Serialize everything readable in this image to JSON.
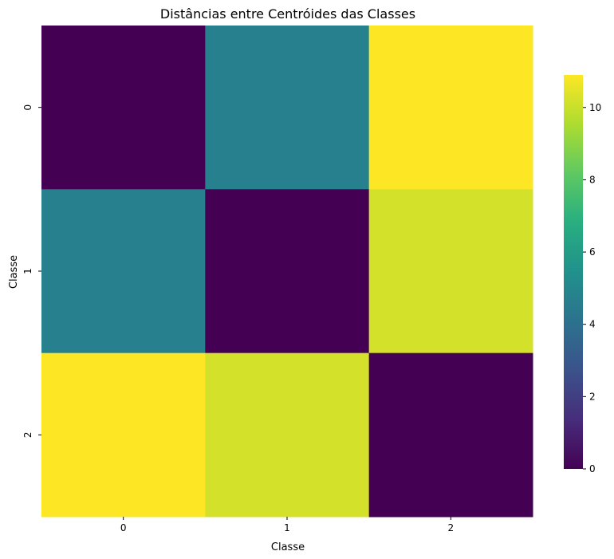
{
  "chart_data": {
    "type": "heatmap",
    "title": "Distâncias entre Centróides das Classes",
    "xlabel": "Classe",
    "ylabel": "Classe",
    "x_categories": [
      "0",
      "1",
      "2"
    ],
    "y_categories": [
      "0",
      "1",
      "2"
    ],
    "values": [
      [
        0,
        4.7,
        10.9
      ],
      [
        4.7,
        0,
        10.2
      ],
      [
        10.9,
        10.2,
        0
      ]
    ],
    "colormap": "viridis",
    "colorbar": {
      "min": 0,
      "max": 10.9,
      "ticks": [
        0,
        2,
        4,
        6,
        8,
        10
      ],
      "tick_labels": [
        "0",
        "2",
        "4",
        "6",
        "8",
        "10"
      ]
    },
    "annotations": false,
    "grid": false
  }
}
